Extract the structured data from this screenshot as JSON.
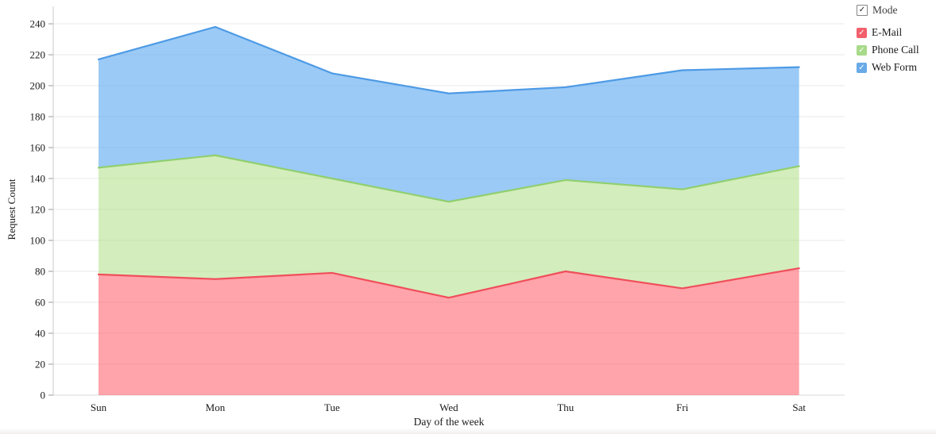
{
  "legend": {
    "title": {
      "label": "Mode",
      "checked": true,
      "checkmark": "✓"
    },
    "items": [
      {
        "label": "E-Mail",
        "color": "#f2606c",
        "checked": true,
        "checkmark": "✓"
      },
      {
        "label": "Phone Call",
        "color": "#a7da89",
        "checked": true,
        "checkmark": "✓"
      },
      {
        "label": "Web Form",
        "color": "#69aae8",
        "checked": true,
        "checkmark": "✓"
      }
    ]
  },
  "chart_data": {
    "type": "area",
    "stacked": true,
    "title": "",
    "xlabel": "Day of the week",
    "ylabel": "Request Count",
    "categories": [
      "Sun",
      "Mon",
      "Tue",
      "Wed",
      "Thu",
      "Fri",
      "Sat"
    ],
    "series": [
      {
        "name": "E-Mail",
        "values": [
          78,
          75,
          79,
          63,
          80,
          69,
          82
        ],
        "stroke": "#f04e5b",
        "fill": "rgba(255,90,100,0.55)"
      },
      {
        "name": "Phone Call",
        "values": [
          69,
          80,
          61,
          62,
          59,
          64,
          66
        ],
        "stroke": "#90cf6e",
        "fill": "rgba(169,219,122,0.50)"
      },
      {
        "name": "Web Form",
        "values": [
          70,
          83,
          68,
          70,
          60,
          77,
          64
        ],
        "stroke": "#4d9ae5",
        "fill": "rgba(93,169,240,0.62)"
      }
    ],
    "stacked_totals": [
      217,
      238,
      208,
      195,
      199,
      210,
      212
    ],
    "cumulative_boundaries": {
      "email_top": [
        78,
        75,
        79,
        63,
        80,
        69,
        82
      ],
      "phone_call_top": [
        147,
        155,
        140,
        125,
        139,
        133,
        148
      ],
      "web_form_top": [
        217,
        238,
        208,
        195,
        199,
        210,
        212
      ]
    },
    "ylim": [
      0,
      240
    ],
    "yticks": [
      0,
      20,
      40,
      60,
      80,
      100,
      120,
      140,
      160,
      180,
      200,
      220,
      240
    ],
    "grid": true,
    "legend_position": "top-right"
  },
  "colors": {
    "gridline": "#e9e9e9",
    "zero_line": "#d9d9d9",
    "axis_line": "#c8c8c8",
    "tick": "#9a9a9a",
    "text": "#1a1a1a"
  }
}
